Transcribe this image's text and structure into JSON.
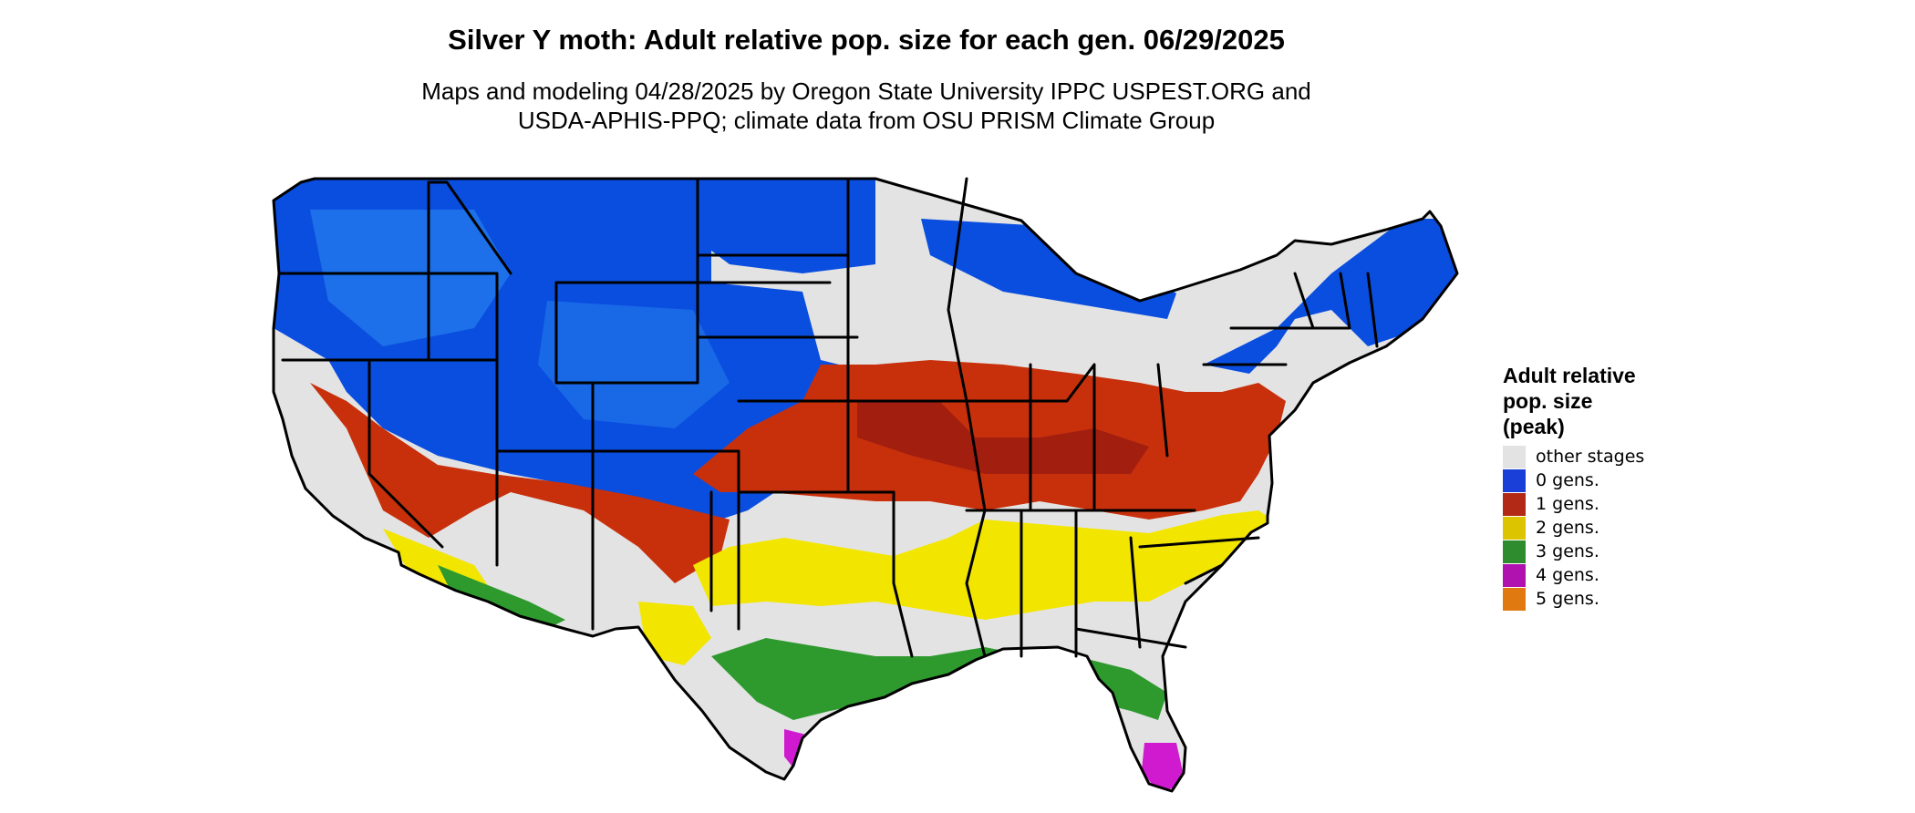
{
  "title": "Silver Y moth: Adult relative pop. size for each gen. 06/29/2025",
  "subtitle": [
    "Maps and modeling 04/28/2025 by Oregon State University IPPC USPEST.ORG and",
    "USDA-APHIS-PPQ; climate data from OSU PRISM Climate Group"
  ],
  "legend": {
    "title": [
      "Adult relative",
      "pop. size",
      "(peak)"
    ],
    "items": [
      {
        "label": "other stages",
        "color": "#e3e3e3"
      },
      {
        "label": "0 gens.",
        "color": "#1a3fd9"
      },
      {
        "label": "1 gens.",
        "color": "#b22a16"
      },
      {
        "label": "2 gens.",
        "color": "#ddc400"
      },
      {
        "label": "3 gens.",
        "color": "#2e8b2e"
      },
      {
        "label": "4 gens.",
        "color": "#b012b0"
      },
      {
        "label": "5 gens.",
        "color": "#e07a10"
      }
    ]
  },
  "map": {
    "region": "Contiguous United States",
    "zones": [
      {
        "name": "0 gens. (northern tier and mountains)",
        "color": "#0a4ee0"
      },
      {
        "name": "1 gens. (central band)",
        "color": "#c8300c"
      },
      {
        "name": "2 gens. (southern band)",
        "color": "#f2e600"
      },
      {
        "name": "3 gens. (Gulf coast)",
        "color": "#2e9a2e"
      },
      {
        "name": "4 gens. (south Texas and south Florida)",
        "color": "#d01ad0"
      }
    ]
  }
}
